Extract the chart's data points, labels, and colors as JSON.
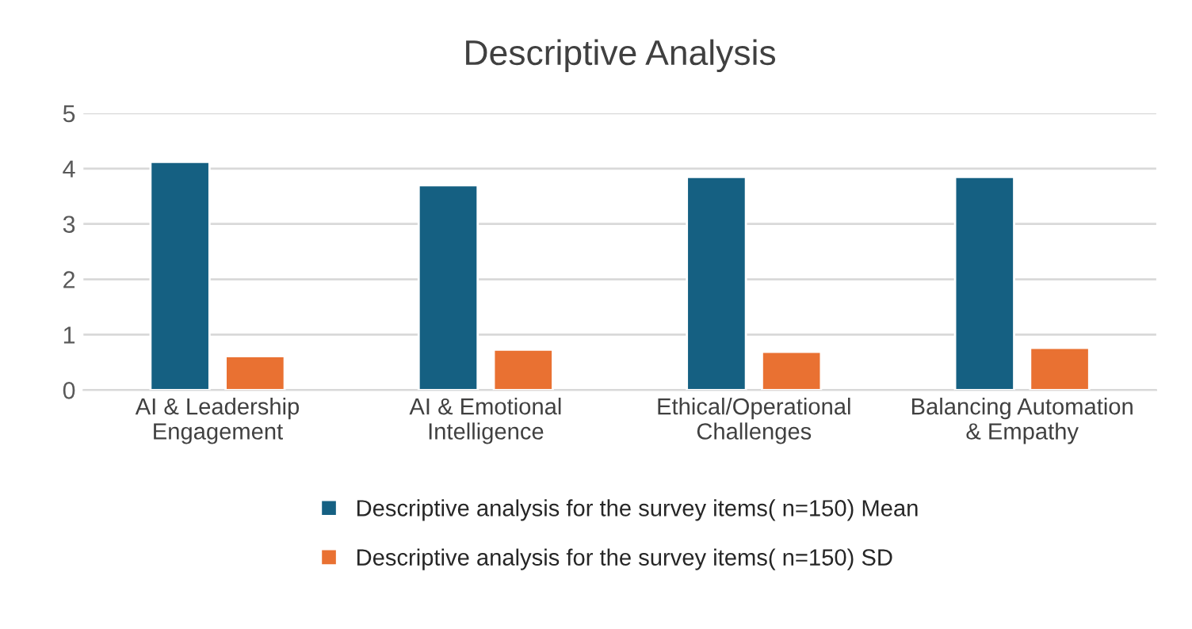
{
  "chart_data": {
    "type": "bar",
    "title": "Descriptive Analysis",
    "categories": [
      "AI & Leadership\nEngagement",
      "AI & Emotional\nIntelligence",
      "Ethical/Operational\nChallenges",
      "Balancing Automation\n& Empathy"
    ],
    "series": [
      {
        "name": "Descriptive analysis for the survey items( n=150) Mean",
        "color": "#156082",
        "values": [
          4.12,
          3.7,
          3.85,
          3.85
        ]
      },
      {
        "name": "Descriptive analysis for the survey items( n=150) SD",
        "color": "#e97132",
        "values": [
          0.61,
          0.73,
          0.69,
          0.76
        ]
      }
    ],
    "ylim": [
      0,
      5
    ],
    "yticks": [
      0,
      1,
      2,
      3,
      4,
      5
    ],
    "grid": "y",
    "legend": "bottom"
  }
}
